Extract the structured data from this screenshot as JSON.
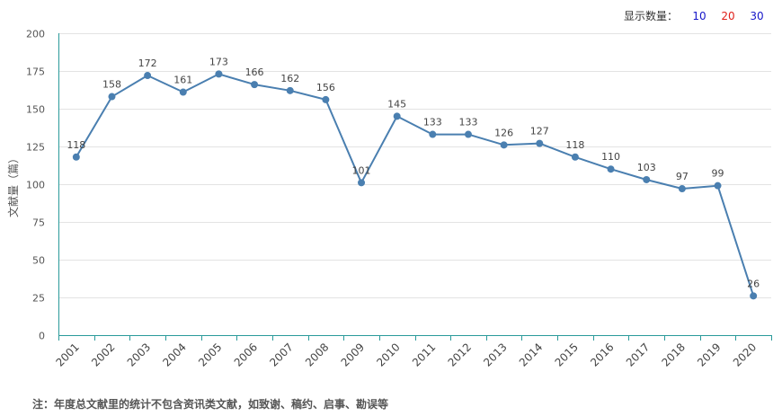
{
  "display_count": {
    "label": "显示数量：",
    "options": [
      {
        "label": "10",
        "color": "#1515c8"
      },
      {
        "label": "20",
        "color": "#e0201a"
      },
      {
        "label": "30",
        "color": "#1515c8"
      }
    ]
  },
  "note": "注：年度总文献里的统计不包含资讯类文献，如致谢、稿约、启事、勘误等",
  "chart_data": {
    "type": "line",
    "title": "",
    "xlabel": "",
    "ylabel": "文献量（篇）",
    "categories": [
      "2001",
      "2002",
      "2003",
      "2004",
      "2005",
      "2006",
      "2007",
      "2008",
      "2009",
      "2010",
      "2011",
      "2012",
      "2013",
      "2014",
      "2015",
      "2016",
      "2017",
      "2018",
      "2019",
      "2020"
    ],
    "series": [
      {
        "values": [
          118,
          158,
          172,
          161,
          173,
          166,
          162,
          156,
          101,
          145,
          133,
          133,
          126,
          127,
          118,
          110,
          103,
          97,
          99,
          26
        ],
        "color": "#4a7fb0"
      }
    ],
    "ylim": [
      0,
      200
    ],
    "yticks": [
      0,
      25,
      50,
      75,
      100,
      125,
      150,
      175,
      200
    ],
    "grid": true,
    "data_labels": true
  }
}
